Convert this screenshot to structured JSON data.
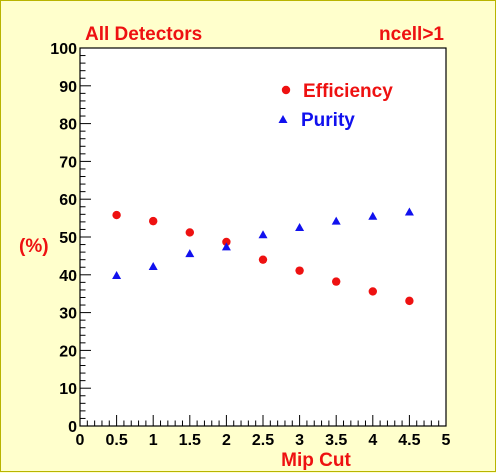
{
  "chart_data": {
    "type": "scatter",
    "title_left": "All Detectors",
    "title_right": "ncell>1",
    "xlabel": "Mip Cut",
    "ylabel": "(%)",
    "xlim": [
      0,
      5
    ],
    "ylim": [
      0,
      100
    ],
    "x_ticks": [
      "0",
      "0.5",
      "1",
      "1.5",
      "2",
      "2.5",
      "3",
      "3.5",
      "4",
      "4.5",
      "5"
    ],
    "y_ticks": [
      "0",
      "10",
      "20",
      "30",
      "40",
      "50",
      "60",
      "70",
      "80",
      "90",
      "100"
    ],
    "grid": false,
    "legend_position": "top-right",
    "series": [
      {
        "name": "Efficiency",
        "marker": "circle",
        "color": "#ee1111",
        "x": [
          0.5,
          1.0,
          1.5,
          2.0,
          2.5,
          3.0,
          3.5,
          4.0,
          4.5
        ],
        "y": [
          55.8,
          54.2,
          51.2,
          48.7,
          44.0,
          41.1,
          38.2,
          35.6,
          33.1
        ]
      },
      {
        "name": "Purity",
        "marker": "triangle",
        "color": "#1111ee",
        "x": [
          0.5,
          1.0,
          1.5,
          2.0,
          2.5,
          3.0,
          3.5,
          4.0,
          4.5
        ],
        "y": [
          39.8,
          42.2,
          45.6,
          47.4,
          50.6,
          52.5,
          54.2,
          55.5,
          56.6
        ]
      }
    ]
  }
}
